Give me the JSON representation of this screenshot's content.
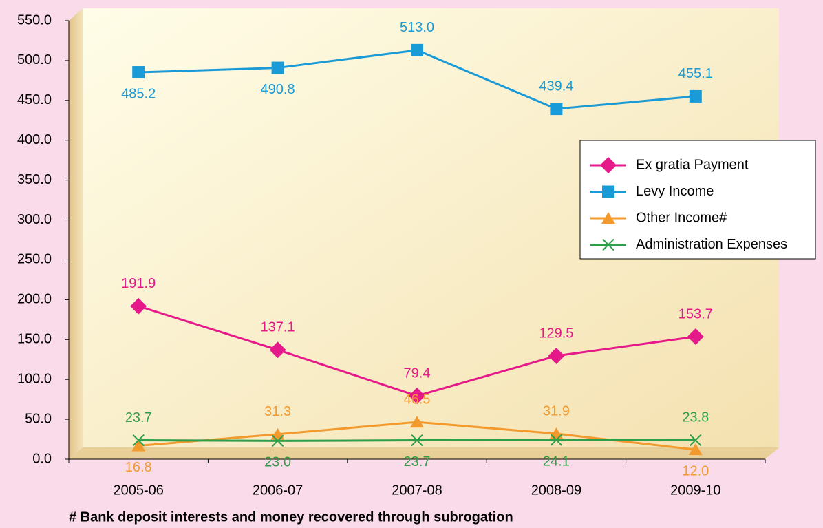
{
  "chart_data": {
    "type": "line",
    "categories": [
      "2005-06",
      "2006-07",
      "2007-08",
      "2008-09",
      "2009-10"
    ],
    "series": [
      {
        "name": "Ex gratia Payment",
        "color": "#e6198a",
        "marker": "diamond",
        "values": [
          191.9,
          137.1,
          79.4,
          129.5,
          153.7
        ],
        "value_labels": [
          "191.9",
          "137.1",
          "79.4",
          "129.5",
          "153.7"
        ]
      },
      {
        "name": "Levy Income",
        "color": "#1a9ad6",
        "marker": "square",
        "values": [
          485.2,
          490.8,
          513.0,
          439.4,
          455.1
        ],
        "value_labels": [
          "485.2",
          "490.8",
          "513.0",
          "439.4",
          "455.1"
        ]
      },
      {
        "name": "Other Income#",
        "color": "#f39a2e",
        "marker": "triangle",
        "values": [
          16.8,
          31.3,
          46.5,
          31.9,
          12.0
        ],
        "value_labels": [
          "16.8",
          "31.3",
          "46.5",
          "31.9",
          "12.0"
        ]
      },
      {
        "name": "Administration Expenses",
        "color": "#2e9e4a",
        "marker": "x",
        "values": [
          23.7,
          23.0,
          23.7,
          24.1,
          23.8
        ],
        "value_labels": [
          "23.7",
          "23.0",
          "23.7",
          "24.1",
          "23.8"
        ]
      }
    ],
    "ylim": [
      0,
      550
    ],
    "yticks": [
      {
        "value": 0,
        "label": "0.0"
      },
      {
        "value": 50,
        "label": "50.0"
      },
      {
        "value": 100,
        "label": "100.0"
      },
      {
        "value": 150,
        "label": "150.0"
      },
      {
        "value": 200,
        "label": "200.0"
      },
      {
        "value": 250,
        "label": "250.0"
      },
      {
        "value": 300,
        "label": "300.0"
      },
      {
        "value": 350,
        "label": "350.0"
      },
      {
        "value": 400,
        "label": "400.0"
      },
      {
        "value": 450,
        "label": "450.0"
      },
      {
        "value": 500,
        "label": "500.0"
      },
      {
        "value": 550,
        "label": "550.0"
      }
    ],
    "grid": false,
    "legend": "right",
    "note": "# Bank deposit interests and money recovered through subrogation"
  }
}
